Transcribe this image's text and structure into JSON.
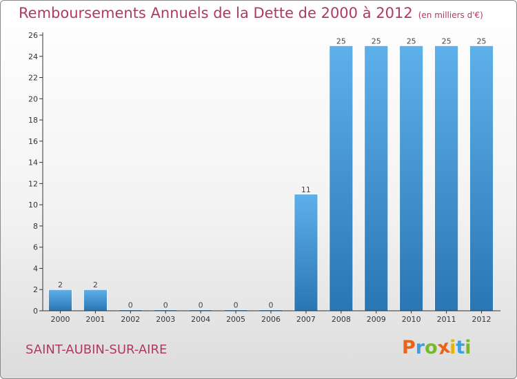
{
  "header": {
    "title": "Remboursements Annuels de la Dette de 2000 à 2012",
    "unit_note": "(en milliers d'€)"
  },
  "footer": {
    "commune": "SAINT-AUBIN-SUR-AIRE",
    "brand": {
      "letters": [
        {
          "char": "P",
          "color": "#e8641b"
        },
        {
          "char": "r",
          "color": "#3b9fe0"
        },
        {
          "char": "o",
          "color": "#78b82a"
        },
        {
          "char": "x",
          "color": "#e8641b"
        },
        {
          "char": "i",
          "color": "#e2b409"
        },
        {
          "char": "t",
          "color": "#3b9fe0"
        },
        {
          "char": "i",
          "color": "#78b82a"
        }
      ]
    }
  },
  "colors": {
    "title": "#b03a5f",
    "bar_top": "#5eb0ea",
    "bar_bottom": "#2a76b4",
    "axis": "#333333"
  },
  "chart_data": {
    "type": "bar",
    "categories": [
      "2000",
      "2001",
      "2002",
      "2003",
      "2004",
      "2005",
      "2006",
      "2007",
      "2008",
      "2009",
      "2010",
      "2011",
      "2012"
    ],
    "values": [
      2,
      2,
      0,
      0,
      0,
      0,
      0,
      11,
      25,
      25,
      25,
      25,
      25
    ],
    "title": "Remboursements Annuels de la Dette de 2000 à 2012",
    "subtitle": "(en milliers d'€)",
    "xlabel": "",
    "ylabel": "",
    "ylim": [
      0,
      26
    ],
    "yticks": [
      0,
      2,
      4,
      6,
      8,
      10,
      12,
      14,
      16,
      18,
      20,
      22,
      24,
      26
    ],
    "grid": false,
    "legend": "none"
  }
}
